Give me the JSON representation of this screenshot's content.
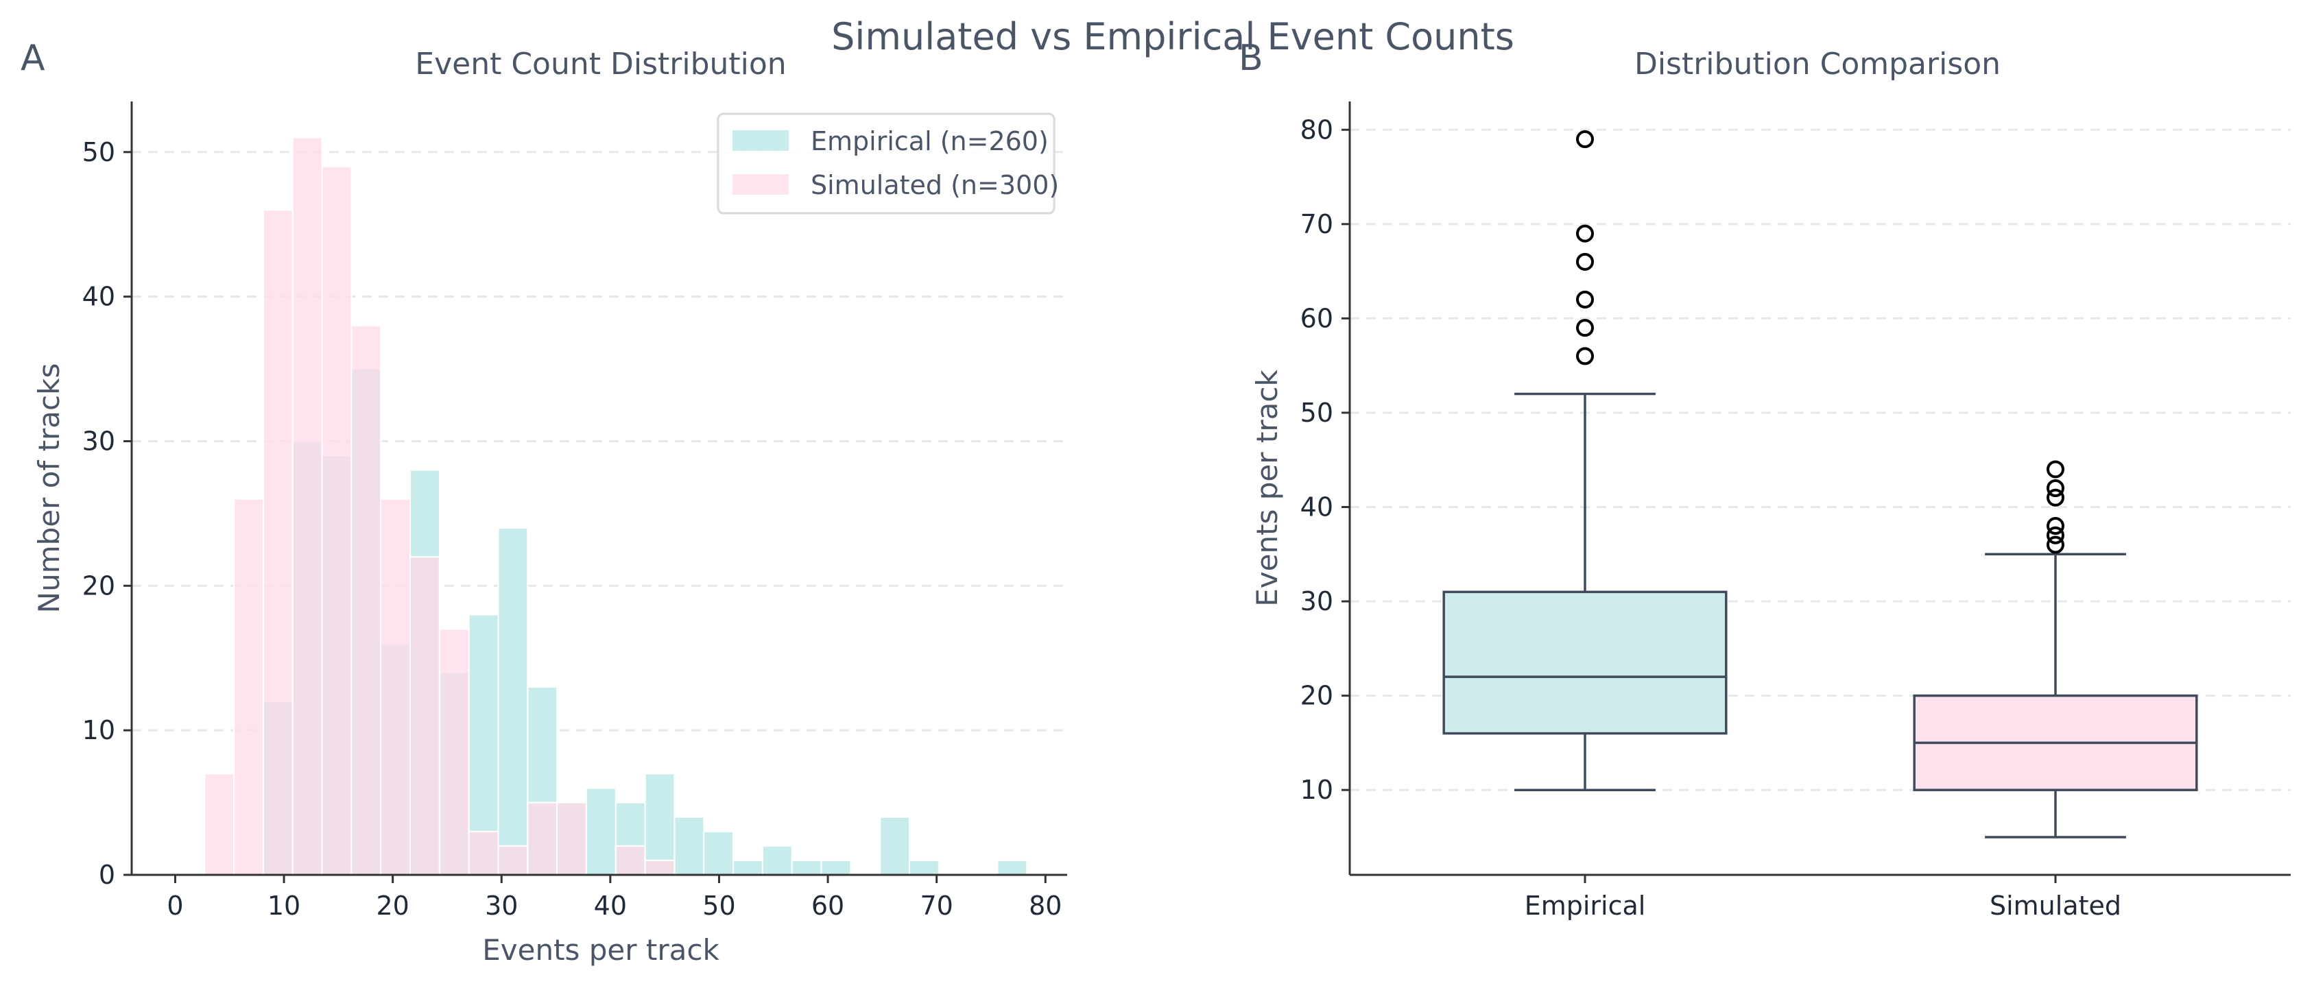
{
  "suptitle": "Simulated vs Empirical Event Counts",
  "colors": {
    "empirical": "#c5ebea",
    "simulated": "#ffd9e8",
    "box_line": "#3f4a5c",
    "axis": "#333333",
    "grid": "#e5e7eb",
    "text": "#4a5568"
  },
  "chart_data": [
    {
      "type": "histogram",
      "panel_label": "A",
      "title": "Event Count Distribution",
      "xlabel": "Events per track",
      "ylabel": "Number of tracks",
      "xlim": [
        -4,
        82
      ],
      "ylim": [
        0,
        53.5
      ],
      "xticks": [
        0,
        10,
        20,
        30,
        40,
        50,
        60,
        70,
        80
      ],
      "yticks": [
        0,
        10,
        20,
        30,
        40,
        50
      ],
      "grid": "horizontal-dashed",
      "legend_position": "top-right",
      "series": [
        {
          "name": "Empirical (n=260)",
          "color": "#c5ebea",
          "bins": [
            {
              "x0": 8.1,
              "x1": 10.8,
              "count": 12
            },
            {
              "x0": 10.8,
              "x1": 13.5,
              "count": 30
            },
            {
              "x0": 13.5,
              "x1": 16.2,
              "count": 29
            },
            {
              "x0": 16.2,
              "x1": 18.9,
              "count": 35
            },
            {
              "x0": 18.9,
              "x1": 21.6,
              "count": 16
            },
            {
              "x0": 21.6,
              "x1": 24.3,
              "count": 28
            },
            {
              "x0": 24.3,
              "x1": 27.0,
              "count": 14
            },
            {
              "x0": 27.0,
              "x1": 29.7,
              "count": 18
            },
            {
              "x0": 29.7,
              "x1": 32.4,
              "count": 24
            },
            {
              "x0": 32.4,
              "x1": 35.1,
              "count": 13
            },
            {
              "x0": 35.1,
              "x1": 37.8,
              "count": 5
            },
            {
              "x0": 37.8,
              "x1": 40.5,
              "count": 6
            },
            {
              "x0": 40.5,
              "x1": 43.2,
              "count": 5
            },
            {
              "x0": 43.2,
              "x1": 45.9,
              "count": 7
            },
            {
              "x0": 45.9,
              "x1": 48.6,
              "count": 4
            },
            {
              "x0": 48.6,
              "x1": 51.3,
              "count": 3
            },
            {
              "x0": 51.3,
              "x1": 54.0,
              "count": 1
            },
            {
              "x0": 54.0,
              "x1": 56.7,
              "count": 2
            },
            {
              "x0": 56.7,
              "x1": 59.4,
              "count": 1
            },
            {
              "x0": 59.4,
              "x1": 62.1,
              "count": 1
            },
            {
              "x0": 62.1,
              "x1": 64.8,
              "count": 0
            },
            {
              "x0": 64.8,
              "x1": 67.5,
              "count": 4
            },
            {
              "x0": 67.5,
              "x1": 70.2,
              "count": 1
            },
            {
              "x0": 70.2,
              "x1": 72.9,
              "count": 0
            },
            {
              "x0": 72.9,
              "x1": 75.6,
              "count": 0
            },
            {
              "x0": 75.6,
              "x1": 78.3,
              "count": 1
            }
          ]
        },
        {
          "name": "Simulated (n=300)",
          "color": "#ffd9e8",
          "bins": [
            {
              "x0": 2.7,
              "x1": 5.4,
              "count": 7
            },
            {
              "x0": 5.4,
              "x1": 8.1,
              "count": 26
            },
            {
              "x0": 8.1,
              "x1": 10.8,
              "count": 46
            },
            {
              "x0": 10.8,
              "x1": 13.5,
              "count": 51
            },
            {
              "x0": 13.5,
              "x1": 16.2,
              "count": 49
            },
            {
              "x0": 16.2,
              "x1": 18.9,
              "count": 38
            },
            {
              "x0": 18.9,
              "x1": 21.6,
              "count": 26
            },
            {
              "x0": 21.6,
              "x1": 24.3,
              "count": 22
            },
            {
              "x0": 24.3,
              "x1": 27.0,
              "count": 17
            },
            {
              "x0": 27.0,
              "x1": 29.7,
              "count": 3
            },
            {
              "x0": 29.7,
              "x1": 32.4,
              "count": 2
            },
            {
              "x0": 32.4,
              "x1": 35.1,
              "count": 5
            },
            {
              "x0": 35.1,
              "x1": 37.8,
              "count": 5
            },
            {
              "x0": 37.8,
              "x1": 40.5,
              "count": 0
            },
            {
              "x0": 40.5,
              "x1": 43.2,
              "count": 2
            },
            {
              "x0": 43.2,
              "x1": 45.9,
              "count": 1
            }
          ]
        }
      ]
    },
    {
      "type": "boxplot",
      "panel_label": "B",
      "title": "Distribution Comparison",
      "xlabel": "",
      "ylabel": "Events per track",
      "ylim": [
        1,
        83
      ],
      "yticks": [
        10,
        20,
        30,
        40,
        50,
        60,
        70,
        80
      ],
      "grid": "horizontal-dashed",
      "categories": [
        "Empirical",
        "Simulated"
      ],
      "boxes": [
        {
          "name": "Empirical",
          "color": "#cdeceb",
          "whisker_low": 10,
          "q1": 16,
          "median": 22,
          "q3": 31,
          "whisker_high": 52,
          "outliers": [
            56,
            59,
            62,
            66,
            69,
            79
          ]
        },
        {
          "name": "Simulated",
          "color": "#ffe0ed",
          "whisker_low": 5,
          "q1": 10,
          "median": 15,
          "q3": 20,
          "whisker_high": 35,
          "outliers": [
            36,
            37,
            38,
            41,
            42,
            44
          ]
        }
      ]
    }
  ]
}
